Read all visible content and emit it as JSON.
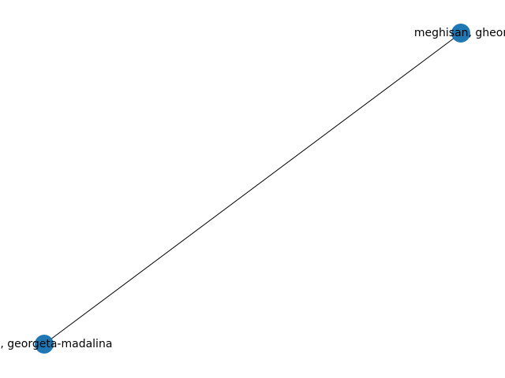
{
  "graph": {
    "colors": {
      "node_fill": "#1f77b4",
      "edge_stroke": "#000000",
      "label_color": "#000000",
      "background": "#ffffff"
    },
    "nodes": [
      {
        "id": "n1",
        "label": "meghisan, gheor"
      },
      {
        "id": "n2",
        "label": "oma, georgeta-madalina"
      }
    ],
    "edges": [
      {
        "source": "n1",
        "target": "n2"
      }
    ]
  }
}
